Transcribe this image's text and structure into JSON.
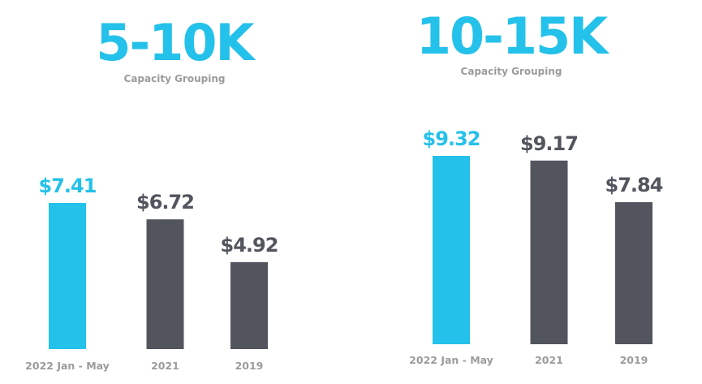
{
  "colors": {
    "highlight": "#24c1ea",
    "default": "#52555e",
    "label": "#9b9b9b"
  },
  "chart_data": [
    {
      "type": "bar",
      "title": "5-10K",
      "subtitle": "Capacity Grouping",
      "categories": [
        "2022 Jan - May",
        "2021",
        "2019"
      ],
      "values": [
        7.41,
        6.72,
        4.92
      ],
      "value_labels": [
        "$7.41",
        "$6.72",
        "$4.92"
      ],
      "highlight_index": 0,
      "xlabel": "",
      "ylabel": "",
      "ylim": [
        1.26,
        7.41
      ],
      "grid": false,
      "legend": "none"
    },
    {
      "type": "bar",
      "title": "10-15K",
      "subtitle": "Capacity Grouping",
      "categories": [
        "2022 Jan - May",
        "2021",
        "2019"
      ],
      "values": [
        9.32,
        9.17,
        7.84
      ],
      "value_labels": [
        "$9.32",
        "$9.17",
        "$7.84"
      ],
      "highlight_index": 0,
      "xlabel": "",
      "ylabel": "",
      "ylim": [
        3.3,
        9.32
      ],
      "grid": false,
      "legend": "none"
    }
  ]
}
